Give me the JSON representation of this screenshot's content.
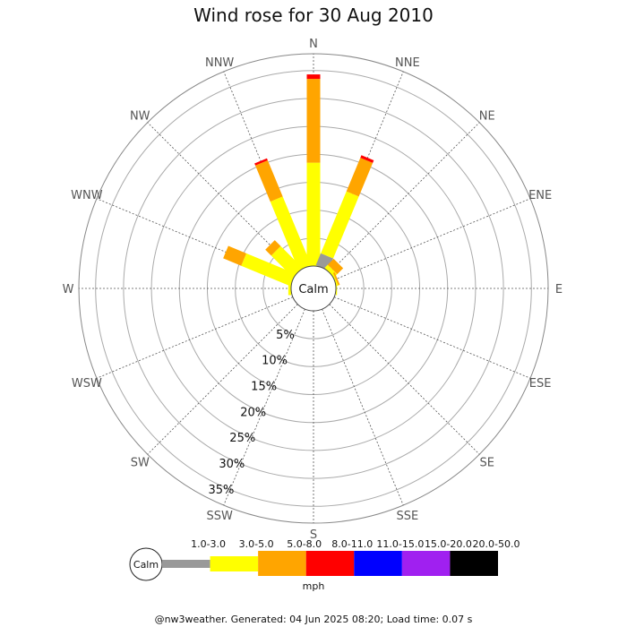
{
  "chart_data": {
    "type": "wind-rose",
    "title": "Wind rose for 30 Aug 2010",
    "calm_label": "Calm",
    "directions": [
      "N",
      "NNE",
      "NE",
      "ENE",
      "E",
      "ESE",
      "SE",
      "SSE",
      "S",
      "SSW",
      "SW",
      "WSW",
      "W",
      "WNW",
      "NW",
      "NNW"
    ],
    "ring_labels": [
      "5%",
      "10%",
      "15%",
      "20%",
      "25%",
      "30%",
      "35%"
    ],
    "rings_percent": [
      5,
      10,
      15,
      20,
      25,
      30,
      35
    ],
    "max_percent": 38,
    "speed_bins": [
      {
        "label": "1.0-3.0",
        "color": "#999999"
      },
      {
        "label": "3.0-5.0",
        "color": "#ffff00"
      },
      {
        "label": "5.0-8.0",
        "color": "#ffa500"
      },
      {
        "label": "8.0-11.0",
        "color": "#ff0000"
      },
      {
        "label": "11.0-15.0",
        "color": "#0000ff"
      },
      {
        "label": "15.0-20.0",
        "color": "#a020f0"
      },
      {
        "label": "20.0-50.0",
        "color": "#000000"
      }
    ],
    "unit": "mph",
    "series": [
      {
        "name": "1.0-3.0",
        "values": [
          0,
          2.3,
          0,
          0,
          0,
          0,
          0,
          0,
          0,
          0,
          0,
          0,
          0,
          0,
          0,
          0
        ]
      },
      {
        "name": "3.0-5.0",
        "values": [
          18.5,
          12.0,
          0.8,
          0.3,
          0.2,
          0,
          0,
          0,
          0,
          0,
          0,
          0,
          0.5,
          9.5,
          5.5,
          13.3
        ]
      },
      {
        "name": "5.0-8.0",
        "values": [
          15.0,
          6.5,
          1.5,
          0.3,
          0,
          0,
          0,
          0,
          0,
          0,
          0,
          0,
          0,
          3.5,
          1.5,
          7.0
        ]
      },
      {
        "name": "8.0-11.0",
        "values": [
          0.8,
          0.5,
          0,
          0,
          0,
          0,
          0,
          0,
          0,
          0,
          0,
          0,
          0,
          0,
          0,
          0.4
        ]
      },
      {
        "name": "11.0-15.0",
        "values": [
          0,
          0,
          0,
          0,
          0,
          0,
          0,
          0,
          0,
          0,
          0,
          0,
          0,
          0,
          0,
          0
        ]
      },
      {
        "name": "15.0-20.0",
        "values": [
          0,
          0,
          0,
          0,
          0,
          0,
          0,
          0,
          0,
          0,
          0,
          0,
          0,
          0,
          0,
          0
        ]
      },
      {
        "name": "20.0-50.0",
        "values": [
          0,
          0,
          0,
          0,
          0,
          0,
          0,
          0,
          0,
          0,
          0,
          0,
          0,
          0,
          0,
          0
        ]
      }
    ],
    "grid": true,
    "legend_position": "bottom"
  },
  "footer": "@nw3weather. Generated: 04 Jun 2025 08:20; Load time: 0.07 s"
}
